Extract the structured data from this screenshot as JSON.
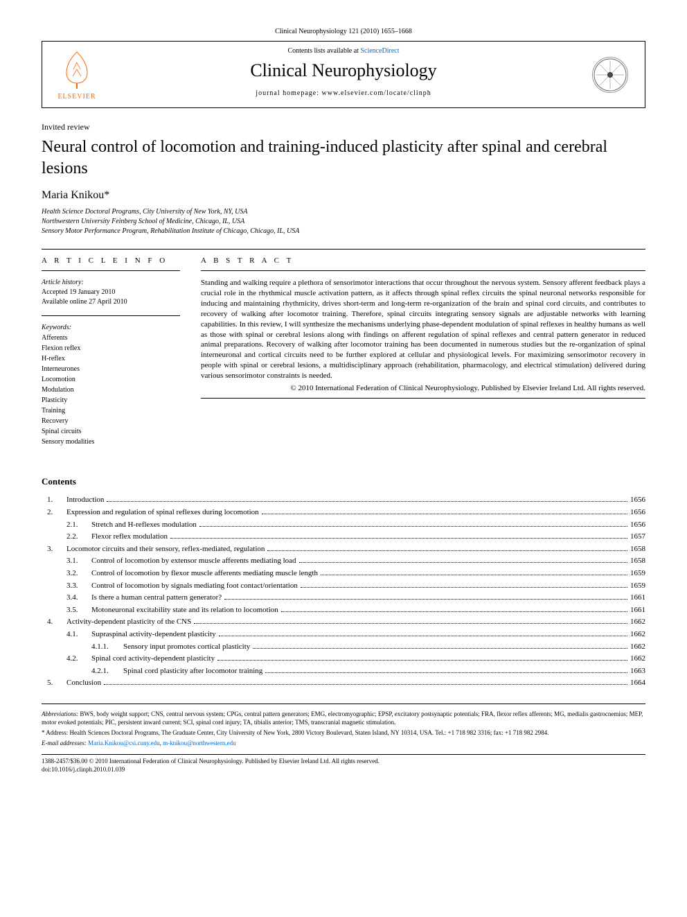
{
  "running_head": "Clinical Neurophysiology 121 (2010) 1655–1668",
  "header": {
    "contents_prefix": "Contents lists available at ",
    "sciencedirect": "ScienceDirect",
    "journal": "Clinical Neurophysiology",
    "homepage_prefix": "journal homepage: ",
    "homepage_url": "www.elsevier.com/locate/clinph",
    "elsevier": "ELSEVIER"
  },
  "article": {
    "type": "Invited review",
    "title": "Neural control of locomotion and training-induced plasticity after spinal and cerebral lesions",
    "author": "Maria Knikou",
    "author_marker": "*",
    "affiliations": [
      "Health Science Doctoral Programs, City University of New York, NY, USA",
      "Northwestern University Feinberg School of Medicine, Chicago, IL, USA",
      "Sensory Motor Performance Program, Rehabilitation Institute of Chicago, Chicago, IL, USA"
    ]
  },
  "info": {
    "heading": "A R T I C L E  I N F O",
    "history_label": "Article history:",
    "accepted": "Accepted 19 January 2010",
    "online": "Available online 27 April 2010",
    "keywords_label": "Keywords:",
    "keywords": [
      "Afferents",
      "Flexion reflex",
      "H-reflex",
      "Interneurones",
      "Locomotion",
      "Modulation",
      "Plasticity",
      "Training",
      "Recovery",
      "Spinal circuits",
      "Sensory modalities"
    ]
  },
  "abstract": {
    "heading": "A B S T R A C T",
    "text": "Standing and walking require a plethora of sensorimotor interactions that occur throughout the nervous system. Sensory afferent feedback plays a crucial role in the rhythmical muscle activation pattern, as it affects through spinal reflex circuits the spinal neuronal networks responsible for inducing and maintaining rhythmicity, drives short-term and long-term re-organization of the brain and spinal cord circuits, and contributes to recovery of walking after locomotor training. Therefore, spinal circuits integrating sensory signals are adjustable networks with learning capabilities. In this review, I will synthesize the mechanisms underlying phase-dependent modulation of spinal reflexes in healthy humans as well as those with spinal or cerebral lesions along with findings on afferent regulation of spinal reflexes and central pattern generator in reduced animal preparations. Recovery of walking after locomotor training has been documented in numerous studies but the re-organization of spinal interneuronal and cortical circuits need to be further explored at cellular and physiological levels. For maximizing sensorimotor recovery in people with spinal or cerebral lesions, a multidisciplinary approach (rehabilitation, pharmacology, and electrical stimulation) delivered during various sensorimotor constraints is needed.",
    "copyright": "© 2010 International Federation of Clinical Neurophysiology. Published by Elsevier Ireland Ltd. All rights reserved."
  },
  "contents": {
    "heading": "Contents",
    "items": [
      {
        "level": 1,
        "num": "1.",
        "title": "Introduction",
        "page": "1656"
      },
      {
        "level": 1,
        "num": "2.",
        "title": "Expression and regulation of spinal reflexes during locomotion",
        "page": "1656"
      },
      {
        "level": 2,
        "num": "2.1.",
        "title": "Stretch and H-reflexes modulation",
        "page": "1656"
      },
      {
        "level": 2,
        "num": "2.2.",
        "title": "Flexor reflex modulation",
        "page": "1657"
      },
      {
        "level": 1,
        "num": "3.",
        "title": "Locomotor circuits and their sensory, reflex-mediated, regulation",
        "page": "1658"
      },
      {
        "level": 2,
        "num": "3.1.",
        "title": "Control of locomotion by extensor muscle afferents mediating load",
        "page": "1658"
      },
      {
        "level": 2,
        "num": "3.2.",
        "title": "Control of locomotion by flexor muscle afferents mediating muscle length",
        "page": "1659"
      },
      {
        "level": 2,
        "num": "3.3.",
        "title": "Control of locomotion by signals mediating foot contact/orientation",
        "page": "1659"
      },
      {
        "level": 2,
        "num": "3.4.",
        "title": "Is there a human central pattern generator?",
        "page": "1661"
      },
      {
        "level": 2,
        "num": "3.5.",
        "title": "Motoneuronal excitability state and its relation to locomotion",
        "page": "1661"
      },
      {
        "level": 1,
        "num": "4.",
        "title": "Activity-dependent plasticity of the CNS",
        "page": "1662"
      },
      {
        "level": 2,
        "num": "4.1.",
        "title": "Supraspinal activity-dependent plasticity",
        "page": "1662"
      },
      {
        "level": 3,
        "num": "4.1.1.",
        "title": "Sensory input promotes cortical plasticity",
        "page": "1662"
      },
      {
        "level": 2,
        "num": "4.2.",
        "title": "Spinal cord activity-dependent plasticity",
        "page": "1662"
      },
      {
        "level": 3,
        "num": "4.2.1.",
        "title": "Spinal cord plasticity after locomotor training",
        "page": "1663"
      },
      {
        "level": 1,
        "num": "5.",
        "title": "Conclusion",
        "page": "1664"
      }
    ]
  },
  "footnotes": {
    "abbrev_label": "Abbreviations:",
    "abbrev_text": " BWS, body weight support; CNS, central nervous system; CPGs, central pattern generators; EMG, electromyographic; EPSP, excitatory postsynaptic potentials; FRA, flexor reflex afferents; MG, medialis gastrocnemius; MEP, motor evoked potentials; PIC, persistent inward current; SCI, spinal cord injury; TA, tibialis anterior; TMS, transcranial magnetic stimulation.",
    "address_label": "* Address:",
    "address_text": " Health Sciences Doctoral Programs, The Graduate Center, City University of New York, 2800 Victory Boulevard, Staten Island, NY 10314, USA. Tel.: +1 718 982 3316; fax: +1 718 982 2984.",
    "email_label": "E-mail addresses:",
    "email1": "Maria.Knikou@csi.cuny.edu",
    "email_sep": ", ",
    "email2": "m-knikou@northwestern.edu"
  },
  "bottom": {
    "line1": "1388-2457/$36.00 © 2010 International Federation of Clinical Neurophysiology. Published by Elsevier Ireland Ltd. All rights reserved.",
    "line2": "doi:10.1016/j.clinph.2010.01.039"
  }
}
